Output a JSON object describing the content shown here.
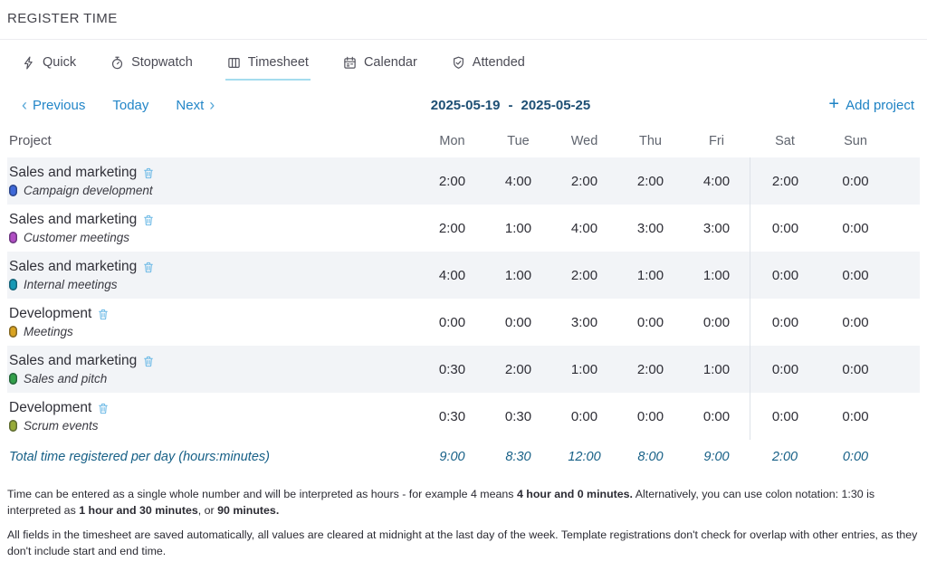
{
  "page": {
    "title": "REGISTER TIME"
  },
  "tabs": [
    {
      "label": "Quick"
    },
    {
      "label": "Stopwatch"
    },
    {
      "label": "Timesheet",
      "active": true
    },
    {
      "label": "Calendar"
    },
    {
      "label": "Attended"
    }
  ],
  "nav": {
    "previous_label": "Previous",
    "today_label": "Today",
    "next_label": "Next",
    "week_start": "2025-05-19",
    "week_separator": "-",
    "week_end": "2025-05-25",
    "add_project_label": "Add project"
  },
  "table": {
    "project_header": "Project",
    "days": [
      "Mon",
      "Tue",
      "Wed",
      "Thu",
      "Fri",
      "Sat",
      "Sun"
    ],
    "rows": [
      {
        "project": "Sales and marketing",
        "task": "Campaign development",
        "dot_color": "#3e68d8",
        "values": [
          "2:00",
          "4:00",
          "2:00",
          "2:00",
          "4:00",
          "2:00",
          "0:00"
        ]
      },
      {
        "project": "Sales and marketing",
        "task": "Customer meetings",
        "dot_color": "#b04ec3",
        "values": [
          "2:00",
          "1:00",
          "4:00",
          "3:00",
          "3:00",
          "0:00",
          "0:00"
        ]
      },
      {
        "project": "Sales and marketing",
        "task": "Internal meetings",
        "dot_color": "#1799b5",
        "values": [
          "4:00",
          "1:00",
          "2:00",
          "1:00",
          "1:00",
          "0:00",
          "0:00"
        ]
      },
      {
        "project": "Development",
        "task": "Meetings",
        "dot_color": "#d9a321",
        "values": [
          "0:00",
          "0:00",
          "3:00",
          "0:00",
          "0:00",
          "0:00",
          "0:00"
        ]
      },
      {
        "project": "Sales and marketing",
        "task": "Sales and pitch",
        "dot_color": "#33a04a",
        "values": [
          "0:30",
          "2:00",
          "1:00",
          "2:00",
          "1:00",
          "0:00",
          "0:00"
        ]
      },
      {
        "project": "Development",
        "task": "Scrum events",
        "dot_color": "#96aa38",
        "values": [
          "0:30",
          "0:30",
          "0:00",
          "0:00",
          "0:00",
          "0:00",
          "0:00"
        ]
      }
    ],
    "total": {
      "label": "Total time registered per day (hours:minutes)",
      "values": [
        "9:00",
        "8:30",
        "12:00",
        "8:00",
        "9:00",
        "2:00",
        "0:00"
      ]
    }
  },
  "footer": {
    "paragraphs": [
      [
        {
          "t": "Time can be entered as a single whole number and will be interpreted as hours - for example 4 means ",
          "b": false
        },
        {
          "t": "4 hour and 0 minutes.",
          "b": true
        },
        {
          "t": " Alternatively, you can use colon notation: 1:30 is interpreted as ",
          "b": false
        },
        {
          "t": "1 hour and 30 minutes",
          "b": true
        },
        {
          "t": ", or ",
          "b": false
        },
        {
          "t": "90 minutes.",
          "b": true
        }
      ],
      [
        {
          "t": "All fields in the timesheet are saved automatically, all values are cleared at midnight at the last day of the week. Template registrations don't check for overlap with other entries, as they don't include start and end time.",
          "b": false
        }
      ]
    ]
  },
  "colors": {
    "link_blue": "#2386c8",
    "date_navy": "#1d4f74",
    "add_project_blue": "#1d82c4",
    "total_blue": "#176087",
    "tab_underline": "#a5dcee",
    "trash_blue": "#6cb9e6",
    "row_shade": "#f2f4f7",
    "weekend_divider": "#dde2e8"
  }
}
